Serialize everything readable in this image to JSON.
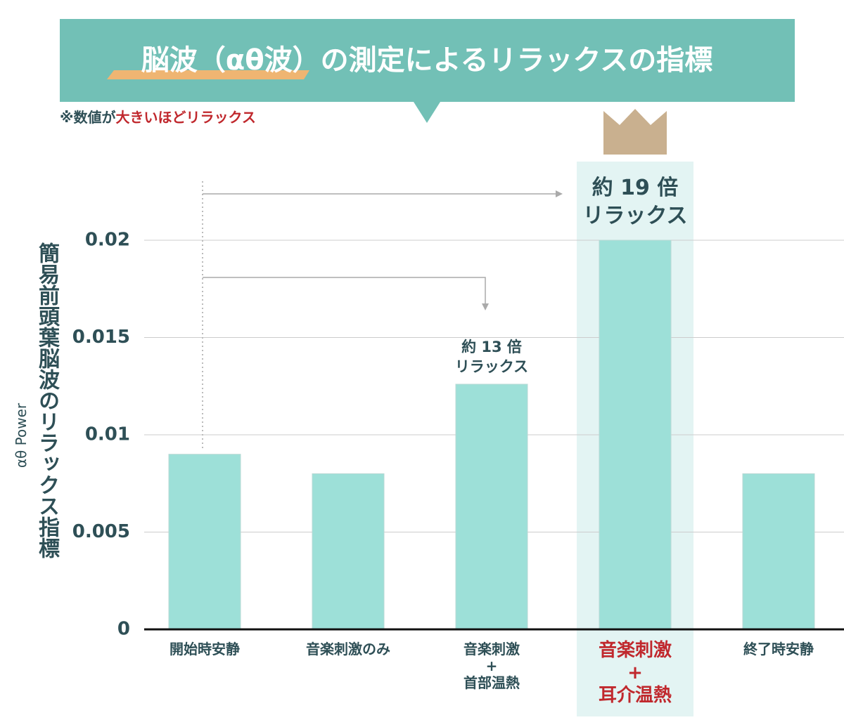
{
  "chart_data": {
    "type": "bar",
    "title": "脳波（αθ波）の測定によるリラックスの指標",
    "note_prefix": "※数値が",
    "note_highlight": "大きいほどリラックス",
    "y_label": "簡易前頭葉脳波のリラックス指標",
    "y_sublabel": "αθ Power",
    "categories": [
      "開始時安静",
      "音楽刺激のみ",
      "音楽刺激\n+\n首部温熱",
      "音楽刺激\n+\n耳介温熱",
      "終了時安静"
    ],
    "values": [
      0.009,
      0.008,
      0.0126,
      0.02,
      0.008
    ],
    "color": "#9de0d8",
    "highlight_color": "#c0282d",
    "highlight_index": 3,
    "annotations": [
      "約 13 倍\nリラックス",
      "約 19 倍\nリラックス"
    ],
    "ylim": [
      0,
      0.02
    ],
    "yticks": [
      0,
      0.005,
      0.01,
      0.015,
      0.02
    ],
    "grid": true
  }
}
